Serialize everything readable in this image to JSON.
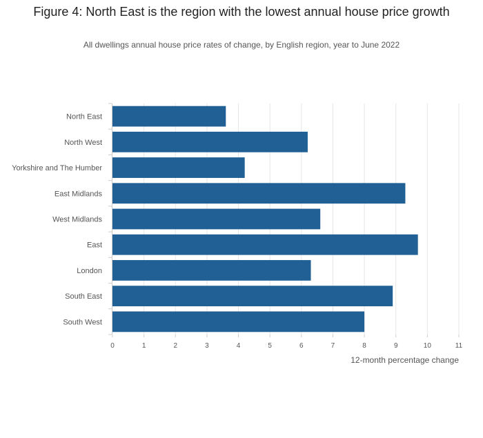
{
  "chart_data": {
    "type": "bar",
    "orientation": "horizontal",
    "title": "Figure 4: North East is the region with the lowest annual house price growth",
    "subtitle": "All dwellings annual house price rates of change, by English region, year to June 2022",
    "xlabel": "12-month percentage change",
    "ylabel": "",
    "categories": [
      "North East",
      "North West",
      "Yorkshire and The Humber",
      "East Midlands",
      "West Midlands",
      "East",
      "London",
      "South East",
      "South West"
    ],
    "values": [
      3.6,
      6.2,
      4.2,
      9.3,
      6.6,
      9.7,
      6.3,
      8.9,
      8.0
    ],
    "xlim": [
      0,
      11
    ],
    "xticks": [
      "0",
      "1",
      "2",
      "3",
      "4",
      "5",
      "6",
      "7",
      "8",
      "9",
      "10",
      "11"
    ],
    "grid": true,
    "bar_color": "#206095"
  }
}
